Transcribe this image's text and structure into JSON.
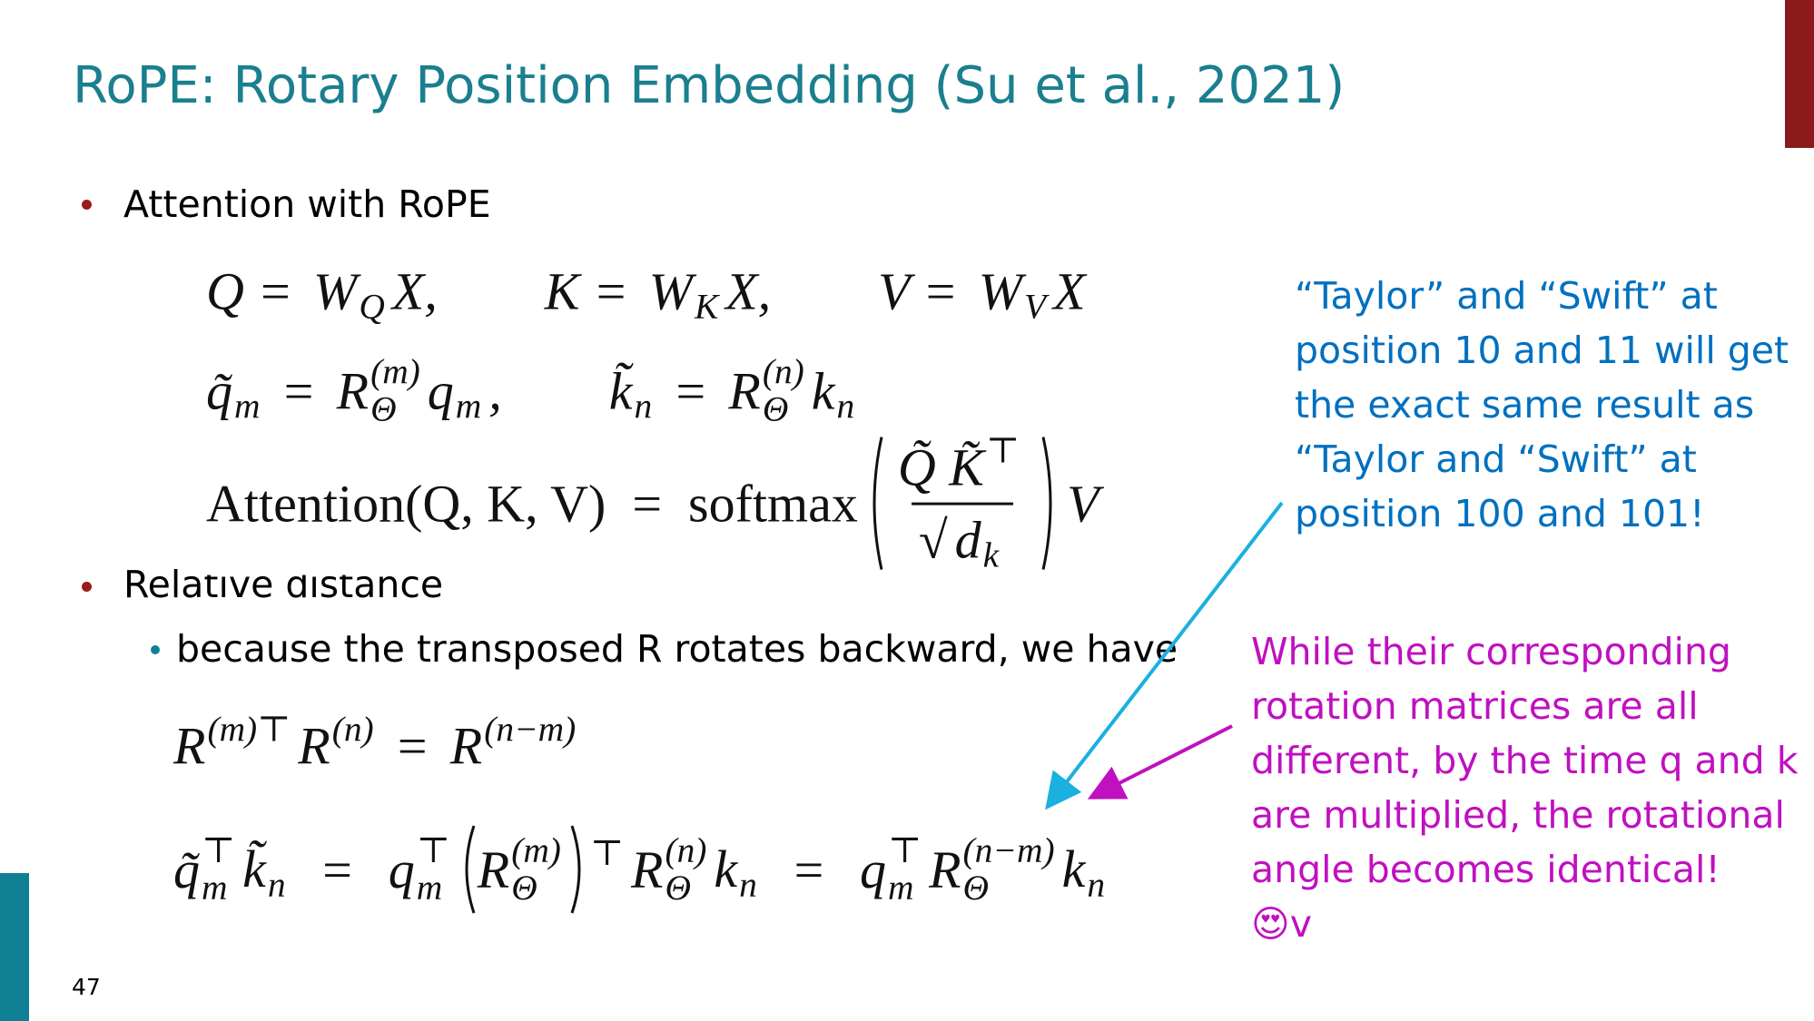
{
  "title": "RoPE: Rotary Position Embedding (Su et al., 2021)",
  "bullets": [
    "Attention with RoPE",
    "Relative distance"
  ],
  "sub_bullet": "because the transposed R rotates backward, we have",
  "equations": {
    "row1": [
      [
        "Q = ",
        {
          "text": "W",
          "sub": "Q"
        },
        "X,"
      ],
      [
        "K = ",
        {
          "text": "W",
          "sub": "K"
        },
        "X,"
      ],
      [
        "V = ",
        {
          "text": "W",
          "sub": "V"
        },
        "X"
      ]
    ],
    "row2": [
      [
        {
          "text": "q̃",
          "sub": "m"
        },
        " = ",
        {
          "text": "R",
          "sup": "(m)",
          "sub": "Θ"
        },
        {
          "text": "q",
          "sub": "m"
        },
        ","
      ],
      [
        {
          "text": "k̃",
          "sub": "n"
        },
        " = ",
        {
          "text": "R",
          "sup": "(n)",
          "sub": "Θ"
        },
        {
          "text": "k",
          "sub": "n"
        }
      ]
    ],
    "row3": [
      [
        {
          "text": "Attention(Q, K, V)  =  softmax",
          "font": "roman"
        },
        {
          "num": [
            {
              "text": "Q̃ K̃",
              "sup": "⊤"
            }
          ],
          "den": [
            "√",
            {
              "text": "d",
              "sub": "k"
            }
          ]
        },
        "V"
      ]
    ],
    "row4": [
      [
        {
          "text": "R",
          "sup": "(m)⊤"
        },
        {
          "text": "R",
          "sup": "(n)"
        },
        " = ",
        {
          "text": "R",
          "sup": "(n−m)"
        }
      ]
    ],
    "row5": [
      [
        {
          "text": "q̃",
          "sup": "⊤",
          "sub": "m"
        },
        {
          "text": "k̃",
          "sub": "n"
        },
        "  =  ",
        {
          "text": "q",
          "sup": "⊤",
          "sub": "m"
        },
        {
          "group": [
            {
              "text": "R",
              "sup": "(m)",
              "sub": "Θ"
            }
          ],
          "sup": "⊤"
        },
        {
          "text": "R",
          "sup": "(n)",
          "sub": "Θ"
        },
        {
          "text": "k",
          "sub": "n"
        },
        "  =  ",
        {
          "text": "q",
          "sup": "⊤",
          "sub": "m"
        },
        {
          "text": "R",
          "sup": "(n−m)",
          "sub": "Θ"
        },
        {
          "text": "k",
          "sub": "n"
        }
      ]
    ]
  },
  "note_blue": [
    "“Taylor” and “Swift” at",
    "position 10 and 11 will get",
    "the exact same result as",
    "“Taylor and “Swift” at",
    "position 100 and 101!"
  ],
  "note_magenta": [
    "While their corresponding",
    "rotation matrices are all",
    "different, by the time q and k",
    "are multiplied, the rotational",
    "angle becomes identical!",
    "😍v"
  ],
  "page_number": "47"
}
